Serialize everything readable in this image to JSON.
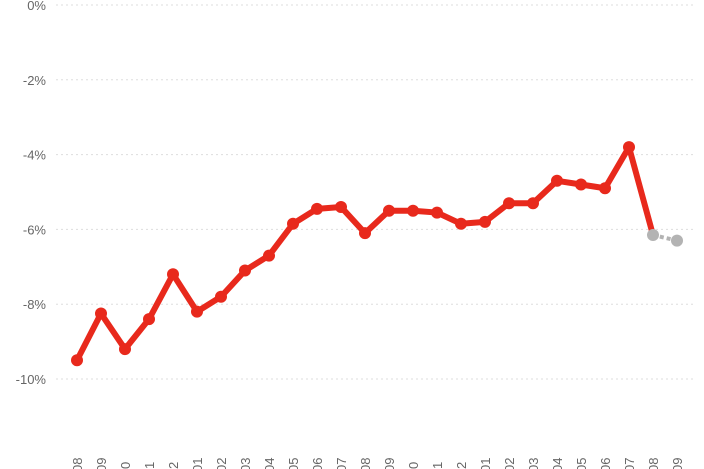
{
  "chart_data": {
    "type": "line",
    "categories": [
      "08",
      "09",
      "0",
      "1",
      "2",
      "01",
      "02",
      "03",
      "04",
      "05",
      "06",
      "07",
      "08",
      "09",
      "0",
      "1",
      "2",
      "01",
      "02",
      "03",
      "04",
      "05",
      "06",
      "07",
      "08",
      "09"
    ],
    "series": [
      {
        "values": [
          -9.5,
          -8.25,
          -9.2,
          -8.4,
          -7.2,
          -8.2,
          -7.8,
          -7.1,
          -6.7,
          -5.85,
          -5.45,
          -5.4,
          -6.1,
          -5.5,
          -5.5,
          -5.55,
          -5.85,
          -5.8,
          -5.3,
          -5.3,
          -4.7,
          -4.8,
          -4.9,
          -3.8,
          -6.15,
          -6.3
        ],
        "color": "#e8291c",
        "projected_color": "#b3b3b3",
        "projected_from_index": 24
      }
    ],
    "yticks": [
      "0%",
      "-2%",
      "-4%",
      "-6%",
      "-8%",
      "-10%"
    ],
    "ytick_values": [
      0,
      -2,
      -4,
      -6,
      -8,
      -10
    ],
    "ylim": [
      -11.3,
      0.1
    ],
    "grid": true,
    "xlabel": "",
    "ylabel": "",
    "title": ""
  }
}
